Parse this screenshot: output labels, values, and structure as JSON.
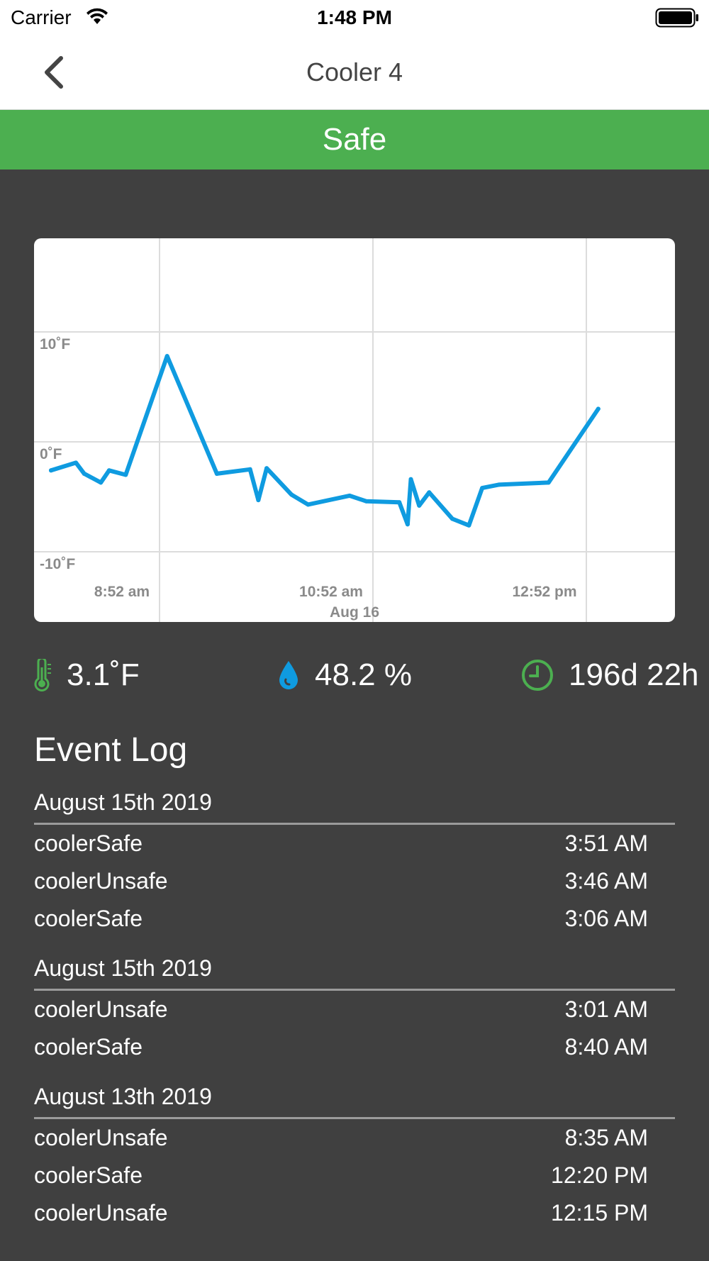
{
  "status_bar": {
    "carrier": "Carrier",
    "time": "1:48 PM"
  },
  "nav": {
    "title": "Cooler 4"
  },
  "banner": {
    "status": "Safe",
    "color": "#4caf50"
  },
  "chart_data": {
    "type": "line",
    "title": "",
    "xlabel": "Aug 16",
    "ylabel": "",
    "y_ticks": [
      "10˚F",
      "0˚F",
      "-10˚F"
    ],
    "y_tick_values": [
      10,
      0,
      -10
    ],
    "x_ticks": [
      "8:52 am",
      "10:52 am",
      "12:52 pm"
    ],
    "ylim": [
      -10,
      18.5
    ],
    "xlim": [
      0,
      360
    ],
    "grid": true,
    "line_color": "#0f9be0",
    "x": [
      0,
      15,
      20,
      30,
      35,
      45,
      70,
      100,
      120,
      125,
      130,
      145,
      155,
      180,
      190,
      210,
      215,
      217,
      222,
      228,
      242,
      252,
      260,
      270,
      300,
      330
    ],
    "y": [
      -2.6,
      -1.9,
      -2.9,
      -3.7,
      -2.6,
      -3.0,
      7.8,
      -2.9,
      -2.5,
      -5.3,
      -2.4,
      -4.8,
      -5.7,
      -4.9,
      -5.4,
      -5.5,
      -7.5,
      -3.4,
      -5.8,
      -4.6,
      -7.0,
      -7.6,
      -4.2,
      -3.9,
      -3.7,
      3.0
    ]
  },
  "readings": {
    "temperature": "3.1˚F",
    "humidity": "48.2 %",
    "uptime": "196d 22h",
    "icon_colors": {
      "temperature": "#4caf50",
      "humidity": "#0f9be0",
      "uptime": "#4caf50"
    }
  },
  "event_log": {
    "title": "Event Log",
    "groups": [
      {
        "date": "August 15th 2019",
        "events": [
          {
            "name": "coolerSafe",
            "time": "3:51 AM"
          },
          {
            "name": "coolerUnsafe",
            "time": "3:46 AM"
          },
          {
            "name": "coolerSafe",
            "time": "3:06 AM"
          }
        ]
      },
      {
        "date": "August 15th 2019",
        "events": [
          {
            "name": "coolerUnsafe",
            "time": "3:01 AM"
          },
          {
            "name": "coolerSafe",
            "time": "8:40 AM"
          }
        ]
      },
      {
        "date": "August 13th 2019",
        "events": [
          {
            "name": "coolerUnsafe",
            "time": "8:35 AM"
          },
          {
            "name": "coolerSafe",
            "time": "12:20 PM"
          },
          {
            "name": "coolerUnsafe",
            "time": "12:15 PM"
          }
        ]
      }
    ]
  }
}
